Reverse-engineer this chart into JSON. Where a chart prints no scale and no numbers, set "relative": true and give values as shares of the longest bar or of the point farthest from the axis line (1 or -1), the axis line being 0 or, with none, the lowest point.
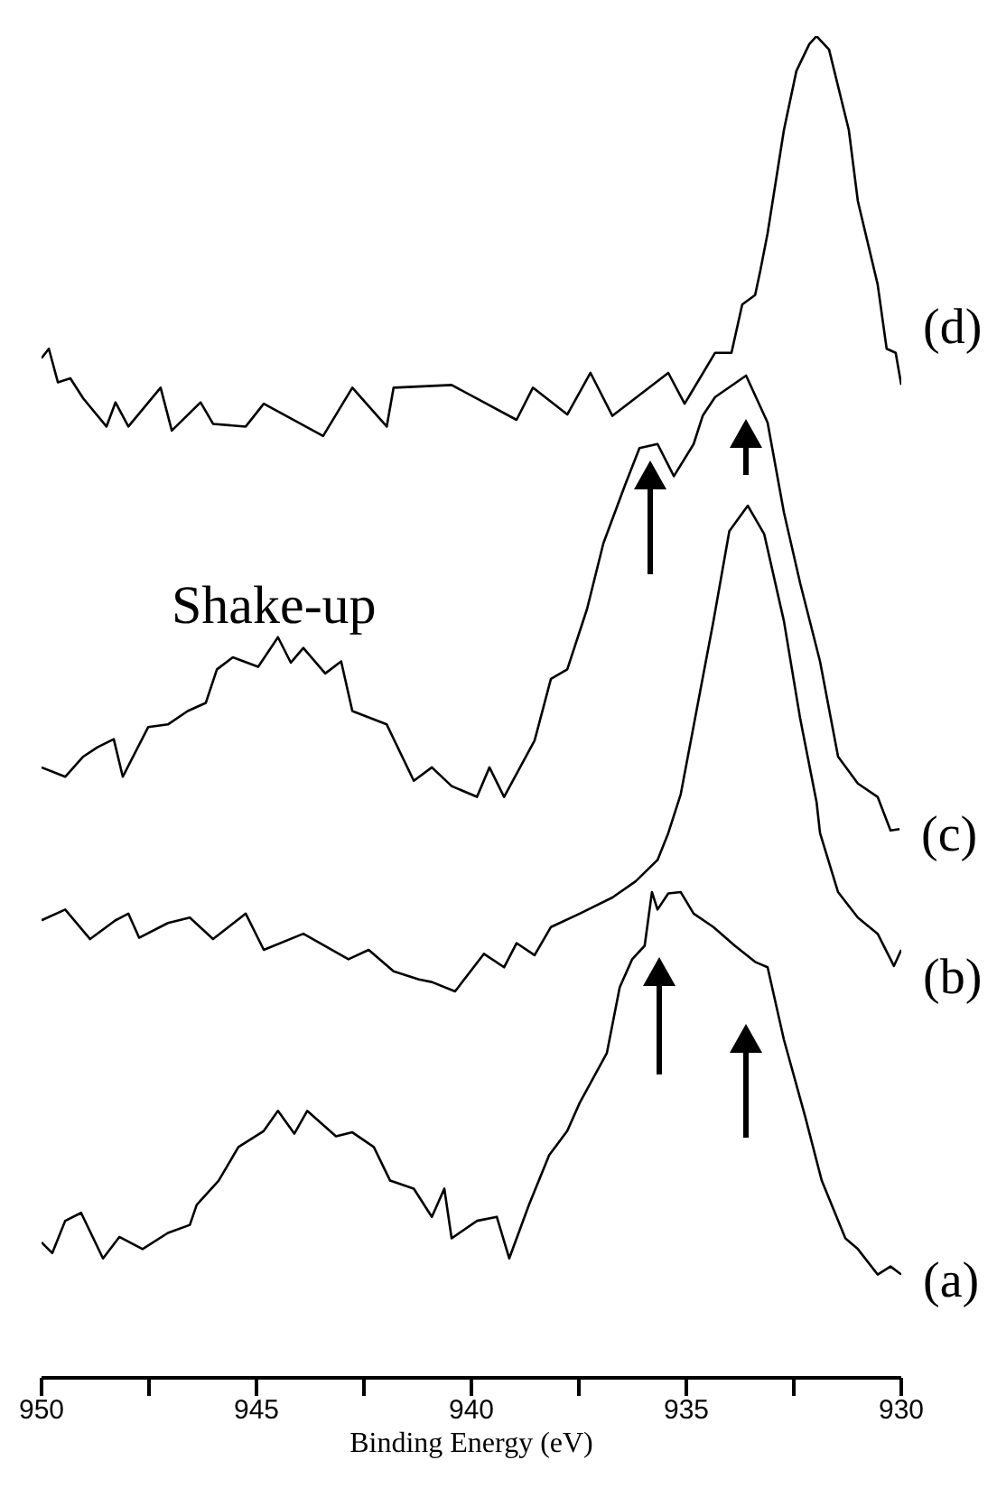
{
  "chart_data": {
    "type": "line",
    "relative": true,
    "xlabel": "Binding Energy (eV)",
    "xlim": [
      950,
      930
    ],
    "xticks": [
      950,
      {
        "value": 947.5,
        "label": null
      },
      945,
      {
        "value": 942.5,
        "label": null
      },
      940,
      {
        "value": 937.5,
        "label": null
      },
      935,
      {
        "value": 932.5,
        "label": null
      },
      930
    ],
    "annotations": [
      "Shake-up"
    ],
    "marker": "none",
    "line_style": "solid",
    "series": [
      {
        "name": "(a)",
        "color": "#000000",
        "x": [
          950.0,
          949.75,
          949.45,
          949.08,
          948.57,
          948.19,
          947.65,
          947.06,
          946.55,
          946.39,
          945.88,
          945.42,
          944.83,
          944.5,
          944.12,
          943.82,
          943.15,
          942.77,
          942.27,
          941.89,
          941.34,
          940.92,
          940.63,
          940.46,
          939.87,
          939.41,
          939.12,
          938.66,
          938.19,
          937.77,
          937.48,
          936.85,
          936.55,
          936.26,
          935.97,
          935.8,
          935.67,
          935.42,
          935.13,
          934.83,
          934.37,
          933.87,
          933.4,
          933.11,
          932.73,
          932.23,
          931.85,
          931.3,
          931.01,
          930.55,
          930.25,
          930.0
        ],
        "values": [
          0.101,
          0.093,
          0.117,
          0.123,
          0.089,
          0.105,
          0.096,
          0.108,
          0.114,
          0.129,
          0.147,
          0.172,
          0.184,
          0.199,
          0.182,
          0.199,
          0.18,
          0.183,
          0.172,
          0.147,
          0.141,
          0.12,
          0.141,
          0.104,
          0.117,
          0.12,
          0.089,
          0.129,
          0.166,
          0.184,
          0.205,
          0.242,
          0.291,
          0.312,
          0.322,
          0.362,
          0.349,
          0.361,
          0.362,
          0.346,
          0.336,
          0.322,
          0.31,
          0.306,
          0.252,
          0.194,
          0.147,
          0.104,
          0.096,
          0.077,
          0.083,
          0.077
        ]
      },
      {
        "name": "(b)",
        "color": "#000000",
        "x": [
          950.0,
          949.45,
          948.87,
          948.28,
          947.98,
          947.73,
          947.06,
          946.55,
          946.01,
          945.25,
          944.83,
          943.91,
          942.86,
          942.39,
          941.81,
          941.22,
          940.92,
          940.38,
          939.71,
          939.24,
          938.95,
          938.53,
          938.15,
          937.48,
          936.72,
          936.18,
          935.67,
          935.42,
          935.13,
          934.37,
          934.0,
          933.57,
          933.19,
          932.73,
          932.35,
          931.97,
          931.89,
          931.47,
          931.01,
          930.55,
          930.17,
          930.0
        ],
        "values": [
          0.341,
          0.349,
          0.327,
          0.341,
          0.346,
          0.328,
          0.339,
          0.343,
          0.327,
          0.346,
          0.319,
          0.331,
          0.312,
          0.319,
          0.303,
          0.297,
          0.295,
          0.288,
          0.316,
          0.306,
          0.324,
          0.315,
          0.336,
          0.346,
          0.358,
          0.37,
          0.386,
          0.406,
          0.435,
          0.564,
          0.631,
          0.65,
          0.629,
          0.564,
          0.491,
          0.429,
          0.406,
          0.362,
          0.343,
          0.331,
          0.307,
          0.319
        ]
      },
      {
        "name": "(c)",
        "color": "#000000",
        "x": [
          950.0,
          949.45,
          949.03,
          948.7,
          948.32,
          948.11,
          947.52,
          947.06,
          946.6,
          946.18,
          945.92,
          945.55,
          944.96,
          944.5,
          944.2,
          943.91,
          943.4,
          943.03,
          942.77,
          941.97,
          941.34,
          940.92,
          940.46,
          939.87,
          939.58,
          939.24,
          938.53,
          938.15,
          937.77,
          937.31,
          936.93,
          936.43,
          936.09,
          935.67,
          935.29,
          934.83,
          934.62,
          934.33,
          933.61,
          933.11,
          932.73,
          932.35,
          931.89,
          931.47,
          931.01,
          930.55,
          930.25,
          930.04
        ],
        "values": [
          0.455,
          0.448,
          0.463,
          0.47,
          0.476,
          0.448,
          0.485,
          0.487,
          0.497,
          0.503,
          0.528,
          0.537,
          0.53,
          0.552,
          0.533,
          0.544,
          0.525,
          0.534,
          0.497,
          0.487,
          0.445,
          0.455,
          0.441,
          0.433,
          0.455,
          0.433,
          0.475,
          0.521,
          0.528,
          0.573,
          0.622,
          0.665,
          0.693,
          0.696,
          0.672,
          0.696,
          0.717,
          0.731,
          0.747,
          0.712,
          0.645,
          0.592,
          0.534,
          0.463,
          0.443,
          0.433,
          0.408,
          0.409
        ]
      },
      {
        "name": "(d)",
        "color": "#000000",
        "x": [
          950.0,
          949.83,
          949.62,
          949.33,
          949.03,
          948.49,
          948.28,
          947.98,
          947.23,
          946.97,
          946.3,
          946.01,
          945.25,
          944.83,
          943.45,
          942.77,
          941.97,
          941.81,
          940.46,
          938.95,
          938.57,
          937.77,
          937.23,
          936.72,
          935.42,
          935.04,
          934.33,
          933.95,
          933.7,
          933.4,
          933.28,
          933.11,
          932.73,
          932.44,
          932.14,
          931.97,
          931.68,
          931.22,
          931.01,
          930.55,
          930.34,
          930.13,
          930.0
        ],
        "values": [
          0.76,
          0.767,
          0.742,
          0.745,
          0.73,
          0.709,
          0.727,
          0.709,
          0.738,
          0.706,
          0.727,
          0.711,
          0.709,
          0.726,
          0.702,
          0.738,
          0.709,
          0.738,
          0.74,
          0.714,
          0.738,
          0.718,
          0.749,
          0.717,
          0.749,
          0.726,
          0.764,
          0.764,
          0.8,
          0.807,
          0.825,
          0.853,
          0.93,
          0.974,
          0.994,
          1.0,
          0.99,
          0.93,
          0.877,
          0.815,
          0.767,
          0.764,
          0.74
        ]
      }
    ]
  }
}
